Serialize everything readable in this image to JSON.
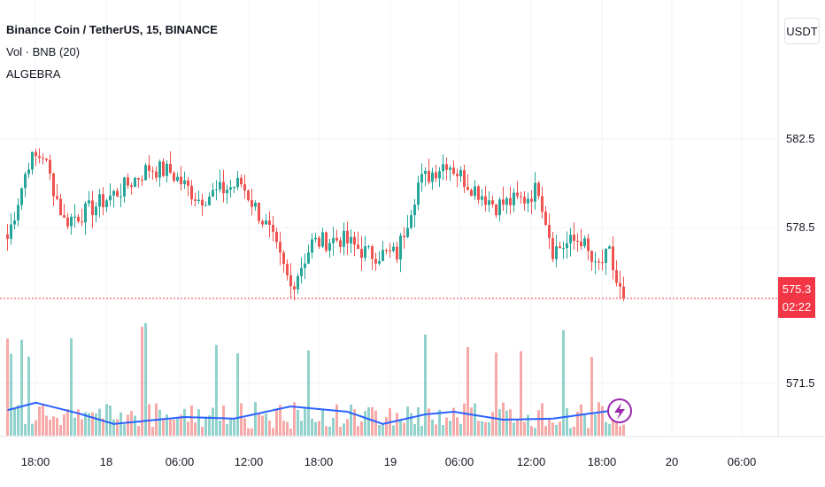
{
  "header": {
    "symbol_title": "Binance Coin / TetherUS, 15, BINANCE",
    "volume_label": "Vol · BNB (20)",
    "indicator_label": "ALGEBRA"
  },
  "price_scale": {
    "currency": "USDT",
    "ticks": [
      "582.5",
      "578.5",
      "571.5"
    ],
    "last_price": "575.3",
    "countdown": "02:22"
  },
  "time_axis": {
    "ticks": [
      "18:00",
      "18",
      "06:00",
      "12:00",
      "18:00",
      "19",
      "06:00",
      "12:00",
      "18:00",
      "20",
      "06:00"
    ]
  },
  "colors": {
    "up": "#26a69a",
    "down": "#ef5350",
    "volume_ma": "#2962ff",
    "price_line": "#f23645",
    "flash_icon": "#9c27b0"
  },
  "chart_data": {
    "type": "candlestick",
    "symbol": "Binance Coin / TetherUS",
    "interval": "15",
    "exchange": "BINANCE",
    "y_ticks": [
      571.5,
      578.5,
      582.5
    ],
    "close_keypoints": [
      [
        0,
        578.0
      ],
      [
        6,
        581.5
      ],
      [
        10,
        581.8
      ],
      [
        16,
        578.8
      ],
      [
        22,
        579.2
      ],
      [
        32,
        580.2
      ],
      [
        40,
        581.2
      ],
      [
        46,
        581.0
      ],
      [
        54,
        579.8
      ],
      [
        66,
        580.5
      ],
      [
        74,
        578.3
      ],
      [
        80,
        575.8
      ],
      [
        86,
        577.8
      ],
      [
        94,
        578.0
      ],
      [
        102,
        577.3
      ],
      [
        110,
        577.3
      ],
      [
        116,
        580.5
      ],
      [
        124,
        581.5
      ],
      [
        130,
        580.5
      ],
      [
        138,
        579.5
      ],
      [
        146,
        579.8
      ],
      [
        150,
        580.3
      ],
      [
        154,
        577.5
      ],
      [
        162,
        578.0
      ],
      [
        166,
        576.6
      ],
      [
        170,
        577.3
      ],
      [
        172,
        576.0
      ],
      [
        174,
        575.3
      ]
    ],
    "last_close": 575.3,
    "volume_ma_period": 20,
    "volume_ma_keypoints": [
      [
        0,
        0.48
      ],
      [
        8,
        0.62
      ],
      [
        20,
        0.42
      ],
      [
        30,
        0.22
      ],
      [
        50,
        0.35
      ],
      [
        64,
        0.32
      ],
      [
        80,
        0.55
      ],
      [
        96,
        0.45
      ],
      [
        106,
        0.22
      ],
      [
        118,
        0.4
      ],
      [
        126,
        0.45
      ],
      [
        140,
        0.3
      ],
      [
        154,
        0.32
      ],
      [
        166,
        0.43
      ],
      [
        174,
        0.5
      ]
    ]
  }
}
